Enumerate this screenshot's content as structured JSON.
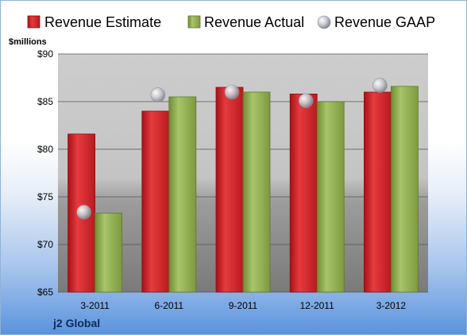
{
  "chart_data": {
    "type": "bar",
    "title": "",
    "ylabel": "$millions",
    "xlabel": "",
    "categories": [
      "3-2011",
      "6-2011",
      "9-2011",
      "12-2011",
      "3-2012"
    ],
    "series": [
      {
        "name": "Revenue Estimate",
        "type": "bar",
        "color": "#c8242a",
        "values": [
          81.6,
          84.0,
          86.5,
          85.8,
          86.0
        ]
      },
      {
        "name": "Revenue Actual",
        "type": "bar",
        "color": "#8aa94a",
        "values": [
          73.3,
          85.5,
          86.0,
          85.0,
          86.6
        ]
      },
      {
        "name": "Revenue GAAP",
        "type": "marker",
        "color": "#b8bcc4",
        "values": [
          73.4,
          85.7,
          86.0,
          85.1,
          86.7
        ]
      }
    ],
    "ylim": [
      65,
      90
    ],
    "yticks": [
      "$65",
      "$70",
      "$75",
      "$80",
      "$85",
      "$90"
    ],
    "ytick_values": [
      65,
      70,
      75,
      80,
      85,
      90
    ],
    "grid": true,
    "legend_position": "top"
  },
  "company": "j2 Global"
}
